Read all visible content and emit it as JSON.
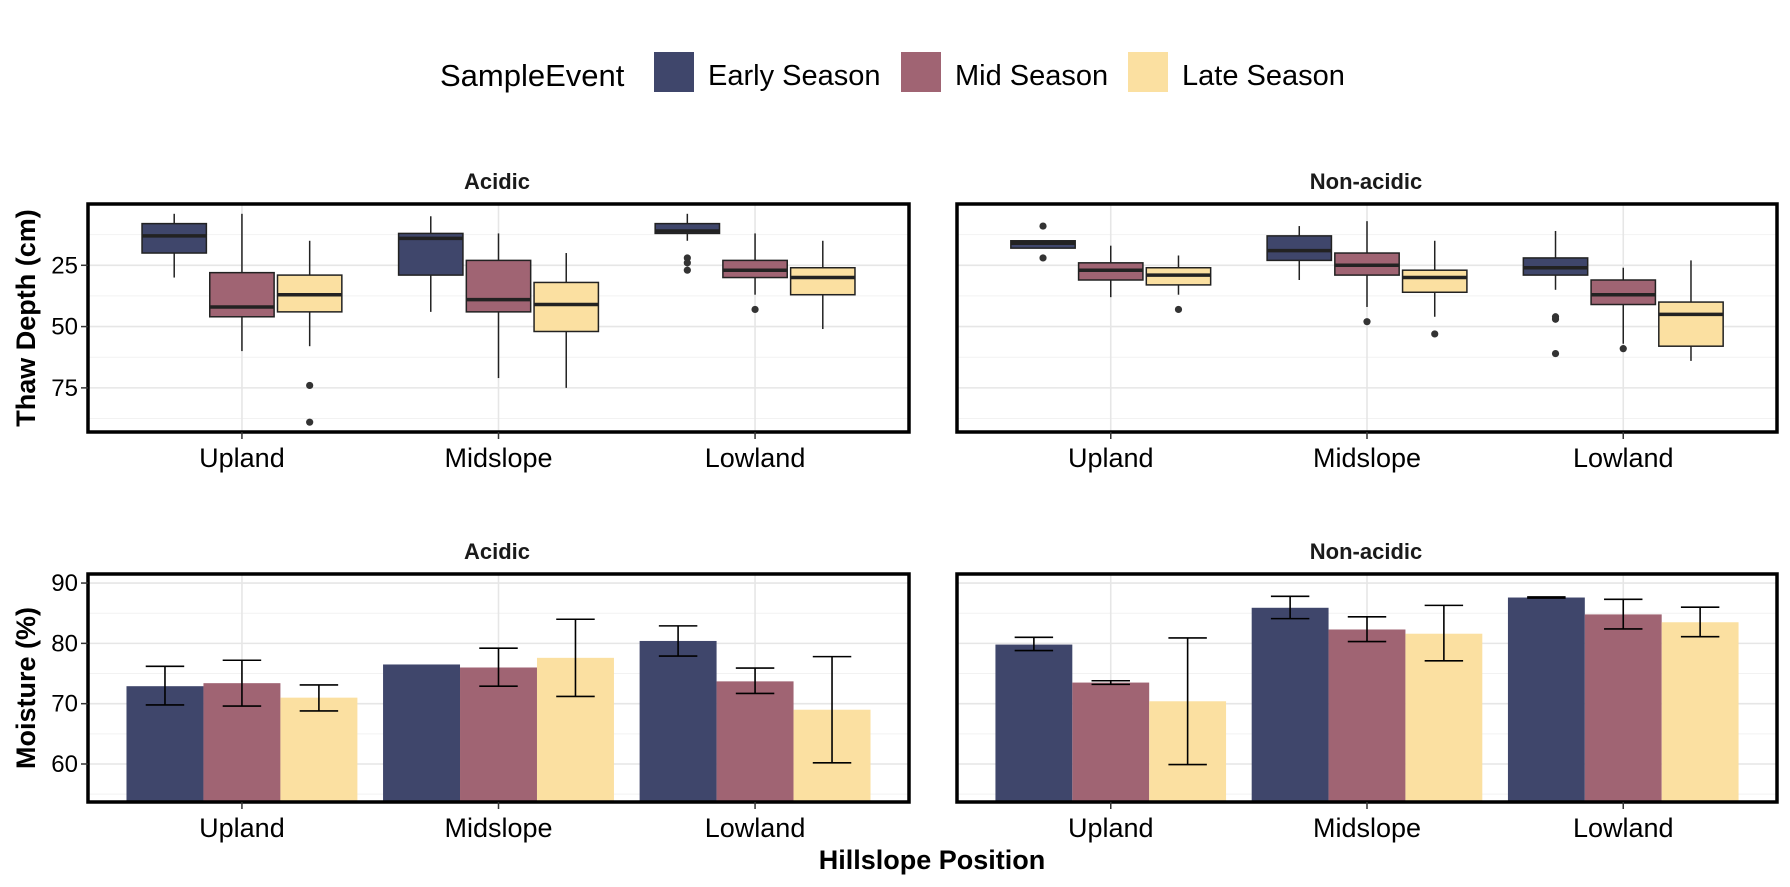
{
  "colors": {
    "early": "#3f466b",
    "mid": "#a06473",
    "late": "#fbe0a1"
  },
  "chart_data": {
    "type": "box+bar",
    "legend": {
      "title": "SampleEvent",
      "entries": [
        "Early Season",
        "Mid Season",
        "Late Season"
      ],
      "placement": "top"
    },
    "xlabel": "Hillslope Position",
    "categories": [
      "Upland",
      "Midslope",
      "Lowland"
    ],
    "facets": [
      "Acidic",
      "Non-acidic"
    ],
    "thaw": {
      "ylabel": "Thaw Depth (cm)",
      "y_reversed": true,
      "ylim": [
        0,
        93
      ],
      "yticks": [
        "25",
        "50",
        "75"
      ],
      "boxes": {
        "Acidic": [
          [
            {
              "min": 4,
              "q1": 8,
              "median": 13,
              "q3": 20,
              "max": 30,
              "outliers": []
            },
            {
              "min": 4,
              "q1": 28,
              "median": 42,
              "q3": 46,
              "max": 60,
              "outliers": []
            },
            {
              "min": 15,
              "q1": 29,
              "median": 37,
              "q3": 44,
              "max": 58,
              "outliers": [
                74,
                89
              ]
            }
          ],
          [
            {
              "min": 5,
              "q1": 12,
              "median": 14,
              "q3": 29,
              "max": 44,
              "outliers": []
            },
            {
              "min": 12,
              "q1": 23,
              "median": 39,
              "q3": 44,
              "max": 71,
              "outliers": []
            },
            {
              "min": 20,
              "q1": 32,
              "median": 41,
              "q3": 52,
              "max": 75,
              "outliers": []
            }
          ],
          [
            {
              "min": 4,
              "q1": 8,
              "median": 11,
              "q3": 12,
              "max": 15,
              "outliers": [
                22,
                24,
                27
              ]
            },
            {
              "min": 12,
              "q1": 23,
              "median": 27,
              "q3": 30,
              "max": 37,
              "outliers": [
                43
              ]
            },
            {
              "min": 15,
              "q1": 26,
              "median": 30,
              "q3": 37,
              "max": 51,
              "outliers": []
            }
          ]
        ],
        "Non-acidic": [
          [
            {
              "min": 15,
              "q1": 15,
              "median": 16,
              "q3": 18,
              "max": 18,
              "outliers": [
                9,
                22
              ]
            },
            {
              "min": 17,
              "q1": 24,
              "median": 27,
              "q3": 31,
              "max": 38,
              "outliers": []
            },
            {
              "min": 21,
              "q1": 26,
              "median": 29,
              "q3": 33,
              "max": 37,
              "outliers": [
                43
              ]
            }
          ],
          [
            {
              "min": 9,
              "q1": 13,
              "median": 19,
              "q3": 23,
              "max": 31,
              "outliers": []
            },
            {
              "min": 7,
              "q1": 20,
              "median": 25,
              "q3": 29,
              "max": 42,
              "outliers": [
                48
              ]
            },
            {
              "min": 15,
              "q1": 27,
              "median": 30,
              "q3": 36,
              "max": 46,
              "outliers": [
                53
              ]
            }
          ],
          [
            {
              "min": 11,
              "q1": 22,
              "median": 26,
              "q3": 29,
              "max": 35,
              "outliers": [
                46,
                47,
                61
              ]
            },
            {
              "min": 26,
              "q1": 31,
              "median": 37,
              "q3": 41,
              "max": 57,
              "outliers": [
                59
              ]
            },
            {
              "min": 23,
              "q1": 40,
              "median": 45,
              "q3": 58,
              "max": 64,
              "outliers": []
            }
          ]
        ]
      }
    },
    "moisture": {
      "ylabel": "Moisture (%)",
      "ylim": [
        53.7,
        91.5
      ],
      "yticks": [
        60,
        70,
        80,
        90
      ],
      "bars": {
        "Acidic": [
          [
            {
              "value": 72.9,
              "lo": 69.8,
              "hi": 76.2
            },
            {
              "value": 73.4,
              "lo": 69.6,
              "hi": 77.2
            },
            {
              "value": 71.0,
              "lo": 68.8,
              "hi": 73.1
            }
          ],
          [
            {
              "value": 76.5,
              "lo": null,
              "hi": null
            },
            {
              "value": 76.0,
              "lo": 72.9,
              "hi": 79.2
            },
            {
              "value": 77.6,
              "lo": 71.2,
              "hi": 84.0
            }
          ],
          [
            {
              "value": 80.4,
              "lo": 77.9,
              "hi": 82.9
            },
            {
              "value": 73.7,
              "lo": 71.7,
              "hi": 75.9
            },
            {
              "value": 69.0,
              "lo": 60.2,
              "hi": 77.8
            }
          ]
        ],
        "Non-acidic": [
          [
            {
              "value": 79.8,
              "lo": 78.8,
              "hi": 81.0
            },
            {
              "value": 73.5,
              "lo": 73.2,
              "hi": 73.8
            },
            {
              "value": 70.4,
              "lo": 59.9,
              "hi": 80.9
            }
          ],
          [
            {
              "value": 85.9,
              "lo": 84.1,
              "hi": 87.8
            },
            {
              "value": 82.3,
              "lo": 80.3,
              "hi": 84.4
            },
            {
              "value": 81.6,
              "lo": 77.1,
              "hi": 86.3
            }
          ],
          [
            {
              "value": 87.6,
              "lo": 87.5,
              "hi": 87.7
            },
            {
              "value": 84.8,
              "lo": 82.4,
              "hi": 87.3
            },
            {
              "value": 83.5,
              "lo": 81.1,
              "hi": 86.0
            }
          ]
        ]
      }
    }
  }
}
